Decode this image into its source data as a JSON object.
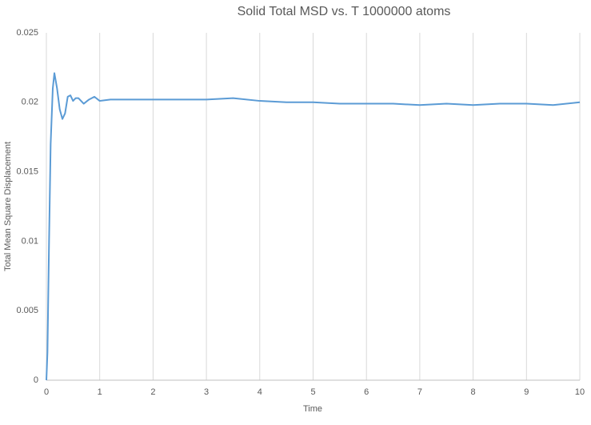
{
  "chart_data": {
    "type": "line",
    "title": "Solid Total MSD vs. T 1000000 atoms",
    "x_label": "Time",
    "y_label": "Total Mean Square Displacement",
    "x": [
      0,
      0.02,
      0.05,
      0.08,
      0.12,
      0.15,
      0.2,
      0.25,
      0.3,
      0.35,
      0.4,
      0.45,
      0.5,
      0.55,
      0.6,
      0.7,
      0.8,
      0.9,
      1.0,
      1.2,
      1.5,
      2,
      2.5,
      3,
      3.5,
      4,
      4.5,
      5,
      5.5,
      6,
      6.5,
      7,
      7.5,
      8,
      8.5,
      9,
      9.5,
      10
    ],
    "values": [
      0,
      0.002,
      0.01,
      0.017,
      0.021,
      0.0221,
      0.021,
      0.0195,
      0.0188,
      0.0192,
      0.0204,
      0.0205,
      0.0201,
      0.0203,
      0.0203,
      0.0199,
      0.0202,
      0.0204,
      0.0201,
      0.0202,
      0.0202,
      0.0202,
      0.0202,
      0.0202,
      0.0203,
      0.0201,
      0.02,
      0.02,
      0.0199,
      0.0199,
      0.0199,
      0.0198,
      0.0199,
      0.0198,
      0.0199,
      0.0199,
      0.0198,
      0.02
    ],
    "color": "#5b9bd5",
    "xlim": [
      0,
      10
    ],
    "xticks": [
      0,
      1,
      2,
      3,
      4,
      5,
      6,
      7,
      8,
      9,
      10
    ],
    "ylim": [
      0,
      0.025
    ],
    "yticks": [
      0,
      0.005,
      0.01,
      0.015,
      0.02,
      0.025
    ],
    "grid": "x"
  }
}
